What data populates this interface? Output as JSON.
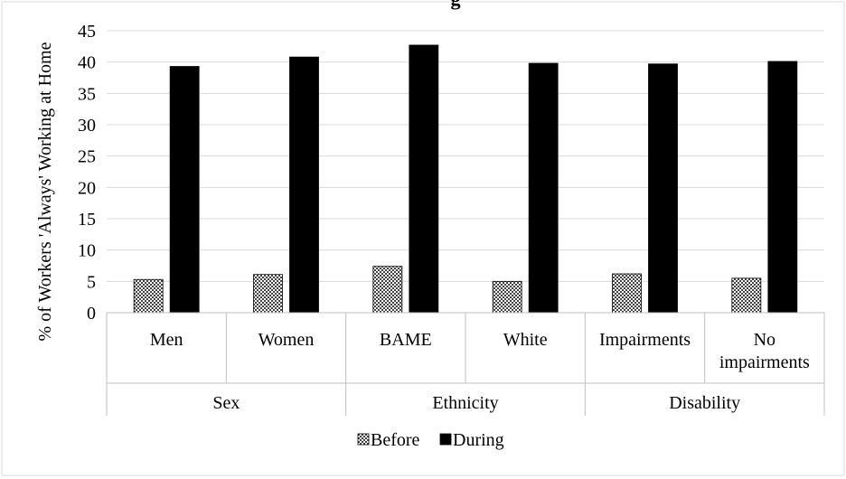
{
  "chart_data": {
    "type": "bar",
    "title": "",
    "title_visible_fragment": "g",
    "ylabel": "% of Workers 'Always' Working at Home",
    "xlabel": "",
    "ylim": [
      0,
      45
    ],
    "yticks": [
      0,
      5,
      10,
      15,
      20,
      25,
      30,
      35,
      40,
      45
    ],
    "grid": true,
    "legend_position": "bottom",
    "categories": [
      "Men",
      "Women",
      "BAME",
      "White",
      "Impairments",
      "No impairments"
    ],
    "category_label_lines": [
      [
        "Men"
      ],
      [
        "Women"
      ],
      [
        "BAME"
      ],
      [
        "White"
      ],
      [
        "Impairments"
      ],
      [
        "No",
        "impairments"
      ]
    ],
    "groups": [
      {
        "label": "Sex",
        "members": [
          "Men",
          "Women"
        ]
      },
      {
        "label": "Ethnicity",
        "members": [
          "BAME",
          "White"
        ]
      },
      {
        "label": "Disability",
        "members": [
          "Impairments",
          "No impairments"
        ]
      }
    ],
    "series": [
      {
        "name": "Before",
        "values": [
          5.3,
          6.1,
          7.4,
          5.0,
          6.2,
          5.5
        ],
        "color": "#8a8a8a",
        "pattern": "checker"
      },
      {
        "name": "During",
        "values": [
          39.3,
          40.8,
          42.7,
          39.8,
          39.7,
          40.1
        ],
        "color": "#000000",
        "pattern": "solid"
      }
    ]
  }
}
